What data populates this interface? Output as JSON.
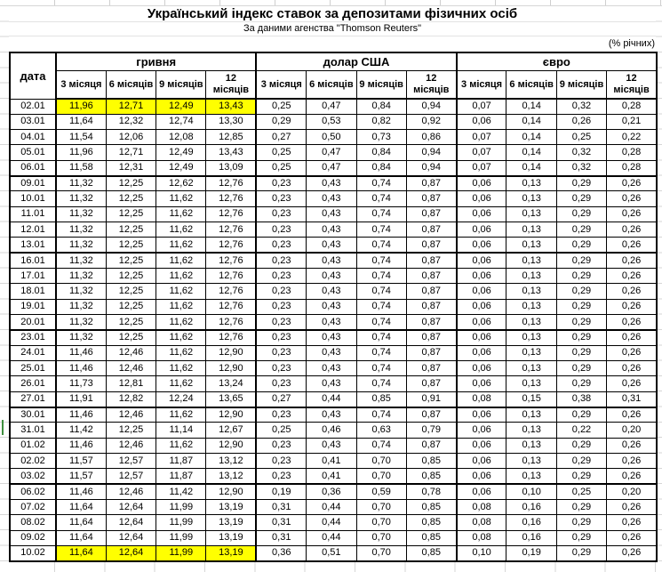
{
  "title": "Український індекс ставок за депозитами фізичних осіб",
  "subtitle": "За даними агенства \"Thomson Reuters\"",
  "unit_note": "(% річних)",
  "colors": {
    "highlight": "#ffff00",
    "row_marker_green": "#3f8f3f",
    "gridline_gray": "#d6d6d6"
  },
  "table": {
    "date_header": "дата",
    "groups": [
      {
        "label": "гривня",
        "sublabels": [
          "3 місяця",
          "6 місяців",
          "9 місяців",
          "12 місяців"
        ]
      },
      {
        "label": "долар США",
        "sublabels": [
          "3 місяця",
          "6 місяців",
          "9 місяців",
          "12 місяців"
        ]
      },
      {
        "label": "євро",
        "sublabels": [
          "3 місяця",
          "6 місяців",
          "9 місяців",
          "12 місяців"
        ]
      }
    ],
    "rows": [
      {
        "date": "02.01",
        "uah": [
          "11,96",
          "12,71",
          "12,49",
          "13,43"
        ],
        "usd": [
          "0,25",
          "0,47",
          "0,84",
          "0,94"
        ],
        "eur": [
          "0,07",
          "0,14",
          "0,32",
          "0,28"
        ],
        "uah_highlight": true
      },
      {
        "date": "03.01",
        "uah": [
          "11,64",
          "12,32",
          "12,74",
          "13,30"
        ],
        "usd": [
          "0,29",
          "0,53",
          "0,82",
          "0,92"
        ],
        "eur": [
          "0,06",
          "0,14",
          "0,26",
          "0,21"
        ]
      },
      {
        "date": "04.01",
        "uah": [
          "11,54",
          "12,06",
          "12,08",
          "12,85"
        ],
        "usd": [
          "0,27",
          "0,50",
          "0,73",
          "0,86"
        ],
        "eur": [
          "0,07",
          "0,14",
          "0,25",
          "0,22"
        ]
      },
      {
        "date": "05.01",
        "uah": [
          "11,96",
          "12,71",
          "12,49",
          "13,43"
        ],
        "usd": [
          "0,25",
          "0,47",
          "0,84",
          "0,94"
        ],
        "eur": [
          "0,07",
          "0,14",
          "0,32",
          "0,28"
        ]
      },
      {
        "date": "06.01",
        "uah": [
          "11,58",
          "12,31",
          "12,49",
          "13,09"
        ],
        "usd": [
          "0,25",
          "0,47",
          "0,84",
          "0,94"
        ],
        "eur": [
          "0,07",
          "0,14",
          "0,32",
          "0,28"
        ],
        "week_end": true
      },
      {
        "date": "09.01",
        "uah": [
          "11,32",
          "12,25",
          "12,62",
          "12,76"
        ],
        "usd": [
          "0,23",
          "0,43",
          "0,74",
          "0,87"
        ],
        "eur": [
          "0,06",
          "0,13",
          "0,29",
          "0,26"
        ]
      },
      {
        "date": "10.01",
        "uah": [
          "11,32",
          "12,25",
          "11,62",
          "12,76"
        ],
        "usd": [
          "0,23",
          "0,43",
          "0,74",
          "0,87"
        ],
        "eur": [
          "0,06",
          "0,13",
          "0,29",
          "0,26"
        ]
      },
      {
        "date": "11.01",
        "uah": [
          "11,32",
          "12,25",
          "11,62",
          "12,76"
        ],
        "usd": [
          "0,23",
          "0,43",
          "0,74",
          "0,87"
        ],
        "eur": [
          "0,06",
          "0,13",
          "0,29",
          "0,26"
        ]
      },
      {
        "date": "12.01",
        "uah": [
          "11,32",
          "12,25",
          "11,62",
          "12,76"
        ],
        "usd": [
          "0,23",
          "0,43",
          "0,74",
          "0,87"
        ],
        "eur": [
          "0,06",
          "0,13",
          "0,29",
          "0,26"
        ]
      },
      {
        "date": "13.01",
        "uah": [
          "11,32",
          "12,25",
          "11,62",
          "12,76"
        ],
        "usd": [
          "0,23",
          "0,43",
          "0,74",
          "0,87"
        ],
        "eur": [
          "0,06",
          "0,13",
          "0,29",
          "0,26"
        ],
        "week_end": true
      },
      {
        "date": "16.01",
        "uah": [
          "11,32",
          "12,25",
          "11,62",
          "12,76"
        ],
        "usd": [
          "0,23",
          "0,43",
          "0,74",
          "0,87"
        ],
        "eur": [
          "0,06",
          "0,13",
          "0,29",
          "0,26"
        ]
      },
      {
        "date": "17.01",
        "uah": [
          "11,32",
          "12,25",
          "11,62",
          "12,76"
        ],
        "usd": [
          "0,23",
          "0,43",
          "0,74",
          "0,87"
        ],
        "eur": [
          "0,06",
          "0,13",
          "0,29",
          "0,26"
        ]
      },
      {
        "date": "18.01",
        "uah": [
          "11,32",
          "12,25",
          "11,62",
          "12,76"
        ],
        "usd": [
          "0,23",
          "0,43",
          "0,74",
          "0,87"
        ],
        "eur": [
          "0,06",
          "0,13",
          "0,29",
          "0,26"
        ]
      },
      {
        "date": "19.01",
        "uah": [
          "11,32",
          "12,25",
          "11,62",
          "12,76"
        ],
        "usd": [
          "0,23",
          "0,43",
          "0,74",
          "0,87"
        ],
        "eur": [
          "0,06",
          "0,13",
          "0,29",
          "0,26"
        ]
      },
      {
        "date": "20.01",
        "uah": [
          "11,32",
          "12,25",
          "11,62",
          "12,76"
        ],
        "usd": [
          "0,23",
          "0,43",
          "0,74",
          "0,87"
        ],
        "eur": [
          "0,06",
          "0,13",
          "0,29",
          "0,26"
        ],
        "week_end": true
      },
      {
        "date": "23.01",
        "uah": [
          "11,32",
          "12,25",
          "11,62",
          "12,76"
        ],
        "usd": [
          "0,23",
          "0,43",
          "0,74",
          "0,87"
        ],
        "eur": [
          "0,06",
          "0,13",
          "0,29",
          "0,26"
        ]
      },
      {
        "date": "24.01",
        "uah": [
          "11,46",
          "12,46",
          "11,62",
          "12,90"
        ],
        "usd": [
          "0,23",
          "0,43",
          "0,74",
          "0,87"
        ],
        "eur": [
          "0,06",
          "0,13",
          "0,29",
          "0,26"
        ]
      },
      {
        "date": "25.01",
        "uah": [
          "11,46",
          "12,46",
          "11,62",
          "12,90"
        ],
        "usd": [
          "0,23",
          "0,43",
          "0,74",
          "0,87"
        ],
        "eur": [
          "0,06",
          "0,13",
          "0,29",
          "0,26"
        ]
      },
      {
        "date": "26.01",
        "uah": [
          "11,73",
          "12,81",
          "11,62",
          "13,24"
        ],
        "usd": [
          "0,23",
          "0,43",
          "0,74",
          "0,87"
        ],
        "eur": [
          "0,06",
          "0,13",
          "0,29",
          "0,26"
        ]
      },
      {
        "date": "27.01",
        "uah": [
          "11,91",
          "12,82",
          "12,24",
          "13,65"
        ],
        "usd": [
          "0,27",
          "0,44",
          "0,85",
          "0,91"
        ],
        "eur": [
          "0,08",
          "0,15",
          "0,38",
          "0,31"
        ],
        "week_end": true
      },
      {
        "date": "30.01",
        "uah": [
          "11,46",
          "12,46",
          "11,62",
          "12,90"
        ],
        "usd": [
          "0,23",
          "0,43",
          "0,74",
          "0,87"
        ],
        "eur": [
          "0,06",
          "0,13",
          "0,29",
          "0,26"
        ]
      },
      {
        "date": "31.01",
        "uah": [
          "11,42",
          "12,25",
          "11,14",
          "12,67"
        ],
        "usd": [
          "0,25",
          "0,46",
          "0,63",
          "0,79"
        ],
        "eur": [
          "0,06",
          "0,13",
          "0,22",
          "0,20"
        ]
      },
      {
        "date": "01.02",
        "uah": [
          "11,46",
          "12,46",
          "11,62",
          "12,90"
        ],
        "usd": [
          "0,23",
          "0,43",
          "0,74",
          "0,87"
        ],
        "eur": [
          "0,06",
          "0,13",
          "0,29",
          "0,26"
        ]
      },
      {
        "date": "02.02",
        "uah": [
          "11,57",
          "12,57",
          "11,87",
          "13,12"
        ],
        "usd": [
          "0,23",
          "0,41",
          "0,70",
          "0,85"
        ],
        "eur": [
          "0,06",
          "0,13",
          "0,29",
          "0,26"
        ]
      },
      {
        "date": "03.02",
        "uah": [
          "11,57",
          "12,57",
          "11,87",
          "13,12"
        ],
        "usd": [
          "0,23",
          "0,41",
          "0,70",
          "0,85"
        ],
        "eur": [
          "0,06",
          "0,13",
          "0,29",
          "0,26"
        ],
        "week_end": true
      },
      {
        "date": "06.02",
        "uah": [
          "11,46",
          "12,46",
          "11,42",
          "12,90"
        ],
        "usd": [
          "0,19",
          "0,36",
          "0,59",
          "0,78"
        ],
        "eur": [
          "0,06",
          "0,10",
          "0,25",
          "0,20"
        ]
      },
      {
        "date": "07.02",
        "uah": [
          "11,64",
          "12,64",
          "11,99",
          "13,19"
        ],
        "usd": [
          "0,31",
          "0,44",
          "0,70",
          "0,85"
        ],
        "eur": [
          "0,08",
          "0,16",
          "0,29",
          "0,26"
        ]
      },
      {
        "date": "08.02",
        "uah": [
          "11,64",
          "12,64",
          "11,99",
          "13,19"
        ],
        "usd": [
          "0,31",
          "0,44",
          "0,70",
          "0,85"
        ],
        "eur": [
          "0,08",
          "0,16",
          "0,29",
          "0,26"
        ]
      },
      {
        "date": "09.02",
        "uah": [
          "11,64",
          "12,64",
          "11,99",
          "13,19"
        ],
        "usd": [
          "0,31",
          "0,44",
          "0,70",
          "0,85"
        ],
        "eur": [
          "0,08",
          "0,16",
          "0,29",
          "0,26"
        ]
      },
      {
        "date": "10.02",
        "uah": [
          "11,64",
          "12,64",
          "11,99",
          "13,19"
        ],
        "usd": [
          "0,36",
          "0,51",
          "0,70",
          "0,85"
        ],
        "eur": [
          "0,10",
          "0,19",
          "0,29",
          "0,26"
        ],
        "uah_highlight": true
      }
    ]
  }
}
